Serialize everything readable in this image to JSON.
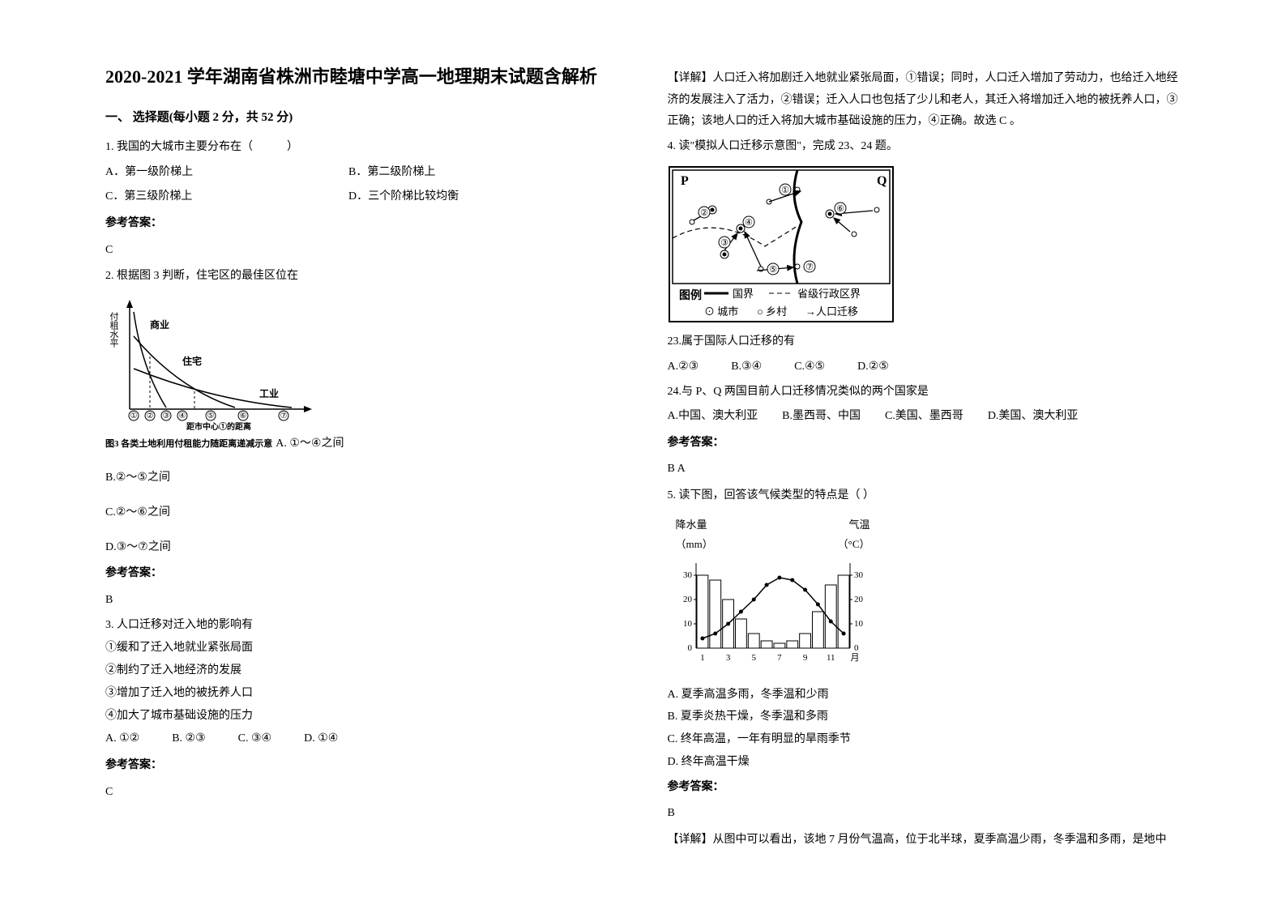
{
  "title": "2020-2021 学年湖南省株洲市睦塘中学高一地理期末试题含解析",
  "section1": "一、 选择题(每小题 2 分，共 52 分)",
  "q1": {
    "stem": "1. 我国的大城市主要分布在（　　　）",
    "a": "A．第一级阶梯上",
    "b": "B．第二级阶梯上",
    "c": "C．第三级阶梯上",
    "d": "D．三个阶梯比较均衡",
    "ans_h": "参考答案：",
    "ans": "C"
  },
  "q2": {
    "stem": "2. 根据图 3 判断，住宅区的最佳区位在",
    "diag": {
      "ylabel": "付租水平",
      "xlabel": "距市中心①的距离",
      "curves": [
        "商业",
        "住宅",
        "工业"
      ],
      "ticks": [
        "①",
        "②",
        "③",
        "④",
        "⑤",
        "⑥",
        "⑦"
      ],
      "caption": "图3 各类土地利用付租能力随距离递减示意",
      "line_color": "#000000",
      "axis_color": "#000000"
    },
    "a": "A. ①～④之间",
    "b": "B.②～⑤之间",
    "c": "C.②～⑥之间",
    "d": "D.③～⑦之间",
    "ans_h": "参考答案：",
    "ans": "B"
  },
  "q3": {
    "stem": "3. 人口迁移对迁入地的影响有",
    "s1": "①缓和了迁入地就业紧张局面",
    "s2": "②制约了迁入地经济的发展",
    "s3": "③增加了迁入地的被抚养人口",
    "s4": "④加大了城市基础设施的压力",
    "a": "A.  ①②",
    "b": "B.  ②③",
    "c": "C.  ③④",
    "d": "D.  ①④",
    "ans_h": "参考答案：",
    "ans": "C"
  },
  "right": {
    "expl3": "【详解】人口迁入将加剧迁入地就业紧张局面，①错误；同时，人口迁入增加了劳动力，也给迁入地经济的发展注入了活力，②错误；迁入人口也包括了少儿和老人，其迁入将增加迁入地的被抚养人口，③正确；该地人口的迁入将加大城市基础设施的压力，④正确。故选 C 。",
    "q4": {
      "stem": "4. 读\"模拟人口迁移示意图\"，完成 23、24 题。",
      "diag": {
        "P": "P",
        "Q": "Q",
        "arrows": [
          "①",
          "②",
          "③",
          "④",
          "⑤",
          "⑥",
          "⑦"
        ],
        "legend_t": "图例",
        "legend1": "国界",
        "legend2": "省级行政区界",
        "legend3": "⊙ 城市",
        "legend4": "○ 乡村",
        "legend5": "→人口迁移",
        "border_color": "#000000"
      },
      "q23": "23.属于国际人口迁移的有",
      "q23a": "A.②③",
      "q23b": "B.③④",
      "q23c": "C.④⑤",
      "q23d": "D.②⑤",
      "q24": "24.与 P、Q 两国目前人口迁移情况类似的两个国家是",
      "q24a": "A.中国、澳大利亚",
      "q24b": "B.墨西哥、中国",
      "q24c": "C.美国、墨西哥",
      "q24d": "D.美国、澳大利亚",
      "ans_h": "参考答案：",
      "ans": "B  A"
    },
    "q5": {
      "stem": "5. 读下图，回答该气候类型的特点是（  ）",
      "diag": {
        "yl_label": "降水量",
        "yl_unit": "（mm）",
        "yr_label": "气温",
        "yr_unit": "（°C）",
        "y_ticks": [
          "0",
          "10",
          "20",
          "30"
        ],
        "yr_ticks": [
          "0",
          "10",
          "20",
          "30"
        ],
        "x_ticks": [
          "1",
          "3",
          "5",
          "7",
          "9",
          "11",
          "月"
        ],
        "precip_mm": [
          30,
          28,
          20,
          12,
          6,
          3,
          2,
          3,
          6,
          15,
          26,
          30
        ],
        "temp_c": [
          4,
          6,
          10,
          15,
          20,
          26,
          29,
          28,
          24,
          18,
          11,
          6
        ],
        "bar_color": "#ffffff",
        "bar_stroke": "#000000",
        "line_color": "#000000",
        "axis_color": "#000000"
      },
      "a": "A.  夏季高温多雨，冬季温和少雨",
      "b": "B.  夏季炎热干燥，冬季温和多雨",
      "c": "C.  终年高温，一年有明显的旱雨季节",
      "d": "D.  终年高温干燥",
      "ans_h": "参考答案：",
      "ans": "B",
      "expl": "【详解】从图中可以看出，该地 7 月份气温高，位于北半球，夏季高温少雨，冬季温和多雨，是地中"
    }
  }
}
